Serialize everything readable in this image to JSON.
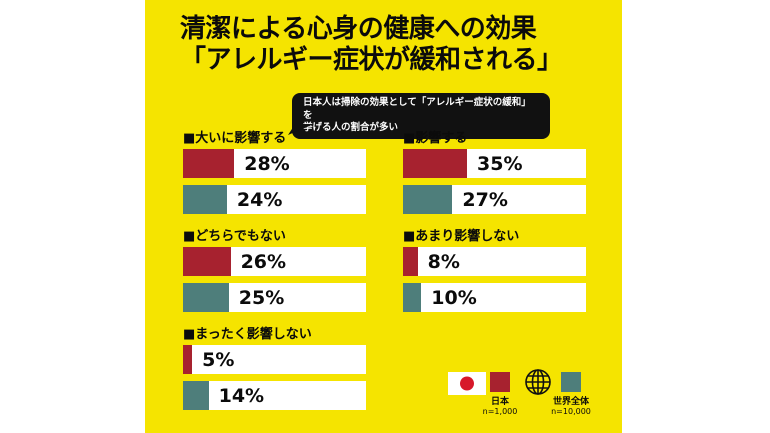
{
  "colors": {
    "panel": "#F5E400",
    "japan": "#A7222F",
    "world": "#4E7E7B",
    "flag_red": "#D7182A",
    "ink": "#111111"
  },
  "title": {
    "line1": "清潔による心身の健康への効果",
    "line2": "「アレルギー症状が緩和される」"
  },
  "callout": {
    "line1": "日本人は掃除の効果として「アレルギー症状の緩和」を",
    "line2": "挙げる人の割合が多い"
  },
  "groups": [
    {
      "label": "■大いに影響する",
      "japan_pct": 28,
      "japan_label": "28%",
      "world_pct": 24,
      "world_label": "24%"
    },
    {
      "label": "■影響する",
      "japan_pct": 35,
      "japan_label": "35%",
      "world_pct": 27,
      "world_label": "27%"
    },
    {
      "label": "■どちらでもない",
      "japan_pct": 26,
      "japan_label": "26%",
      "world_pct": 25,
      "world_label": "25%"
    },
    {
      "label": "■あまり影響しない",
      "japan_pct": 8,
      "japan_label": "8%",
      "world_pct": 10,
      "world_label": "10%"
    },
    {
      "label": "■まったく影響しない",
      "japan_pct": 5,
      "japan_label": "5%",
      "world_pct": 14,
      "world_label": "14%"
    }
  ],
  "legend": {
    "japan": {
      "label": "日本",
      "n": "n=1,000"
    },
    "world": {
      "label": "世界全体",
      "n": "n=10,000"
    },
    "icons": {
      "japan": "japan-flag-icon",
      "world": "globe-icon"
    }
  },
  "chart_data": {
    "type": "bar",
    "orientation": "horizontal",
    "title": "清潔による心身の健康への効果「アレルギー症状が緩和される」",
    "annotation": "日本人は掃除の効果として「アレルギー症状の緩和」を挙げる人の割合が多い",
    "categories": [
      "大いに影響する",
      "影響する",
      "どちらでもない",
      "あまり影響しない",
      "まったく影響しない"
    ],
    "series": [
      {
        "name": "日本",
        "n": "n=1,000",
        "color": "#A7222F",
        "values": [
          28,
          35,
          26,
          8,
          5
        ]
      },
      {
        "name": "世界全体",
        "n": "n=10,000",
        "color": "#4E7E7B",
        "values": [
          24,
          27,
          25,
          10,
          14
        ]
      }
    ],
    "unit": "%",
    "xlim": [
      0,
      100
    ],
    "grid": false,
    "legend_position": "bottom-right"
  }
}
